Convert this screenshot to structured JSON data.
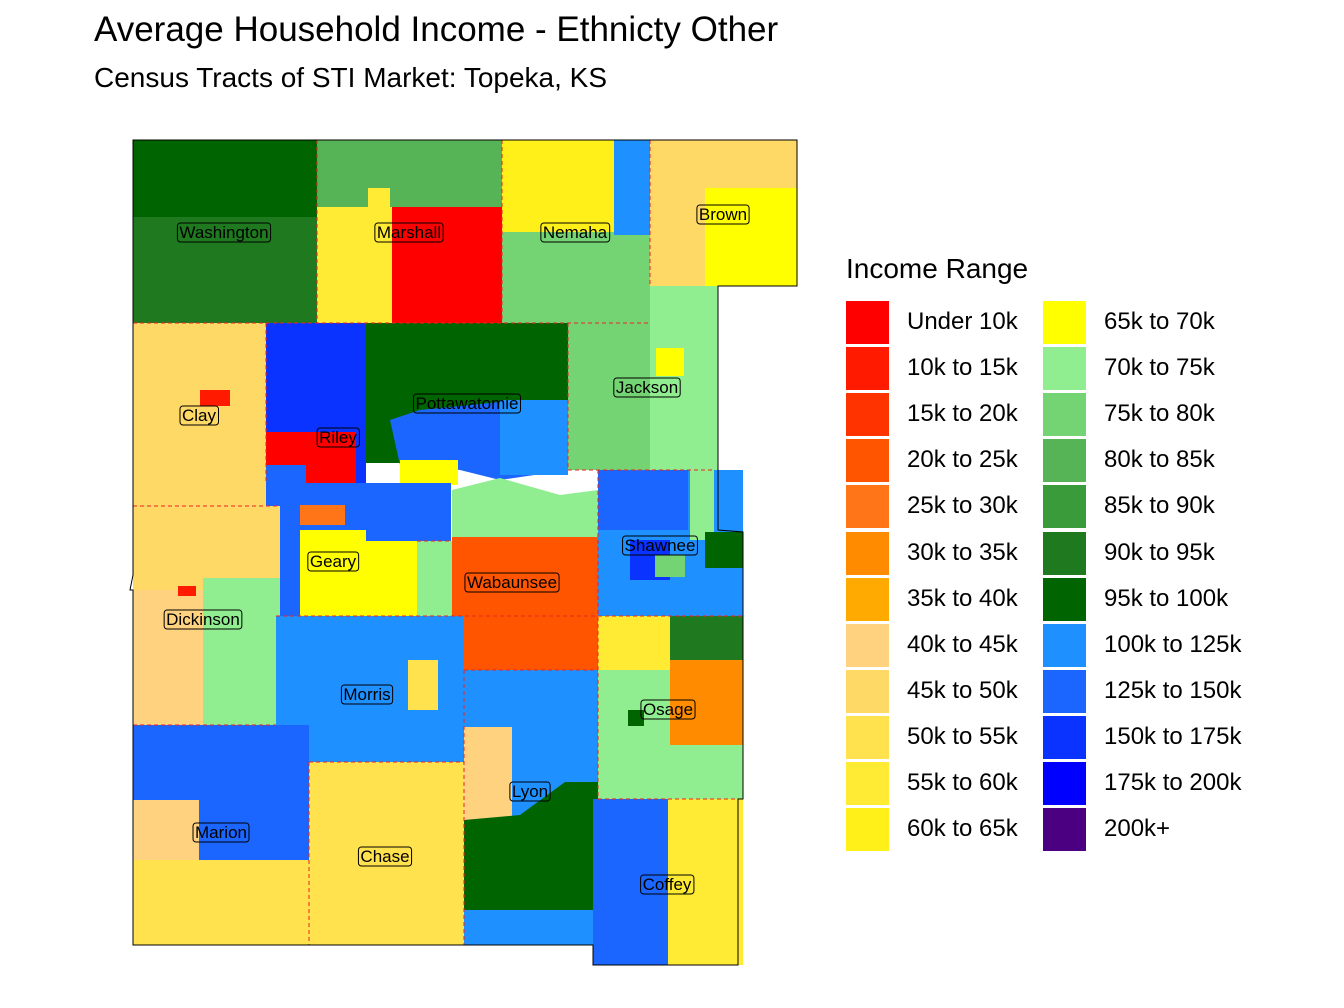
{
  "header": {
    "title": "Average Household Income - Ethnicty Other",
    "subtitle": "Census Tracts of STI Market: Topeka, KS"
  },
  "legend": {
    "title": "Income Range",
    "items": [
      {
        "label": "Under 10k",
        "color": "#ff0000"
      },
      {
        "label": "10k to 15k",
        "color": "#ff1a00"
      },
      {
        "label": "15k to 20k",
        "color": "#ff3300"
      },
      {
        "label": "20k to 25k",
        "color": "#ff5500"
      },
      {
        "label": "25k to 30k",
        "color": "#ff7518"
      },
      {
        "label": "30k to 35k",
        "color": "#ff8c00"
      },
      {
        "label": "35k to 40k",
        "color": "#ffaa00"
      },
      {
        "label": "40k to 45k",
        "color": "#ffd280"
      },
      {
        "label": "45k to 50k",
        "color": "#ffd966"
      },
      {
        "label": "50k to 55k",
        "color": "#ffe24d"
      },
      {
        "label": "55k to 60k",
        "color": "#ffeb33"
      },
      {
        "label": "60k to 65k",
        "color": "#fff01a"
      },
      {
        "label": "65k to 70k",
        "color": "#ffff00"
      },
      {
        "label": "70k to 75k",
        "color": "#90ee90"
      },
      {
        "label": "75k to 80k",
        "color": "#74d474"
      },
      {
        "label": "80k to 85k",
        "color": "#56b356"
      },
      {
        "label": "85k to 90k",
        "color": "#3a9b3a"
      },
      {
        "label": "90k to 95k",
        "color": "#1f7a1f"
      },
      {
        "label": "95k to 100k",
        "color": "#006400"
      },
      {
        "label": "100k to 125k",
        "color": "#1e90ff"
      },
      {
        "label": "125k to 150k",
        "color": "#1a66ff"
      },
      {
        "label": "150k to 175k",
        "color": "#0a33ff"
      },
      {
        "label": "175k to 200k",
        "color": "#0000ff"
      },
      {
        "label": "200k+",
        "color": "#4b0082"
      }
    ]
  },
  "counties": [
    {
      "name": "Washington"
    },
    {
      "name": "Marshall"
    },
    {
      "name": "Nemaha"
    },
    {
      "name": "Brown"
    },
    {
      "name": "Clay"
    },
    {
      "name": "Riley"
    },
    {
      "name": "Pottawatomie"
    },
    {
      "name": "Jackson"
    },
    {
      "name": "Shawnee"
    },
    {
      "name": "Geary"
    },
    {
      "name": "Wabaunsee"
    },
    {
      "name": "Dickinson"
    },
    {
      "name": "Morris"
    },
    {
      "name": "Osage"
    },
    {
      "name": "Lyon"
    },
    {
      "name": "Marion"
    },
    {
      "name": "Chase"
    },
    {
      "name": "Coffey"
    }
  ]
}
